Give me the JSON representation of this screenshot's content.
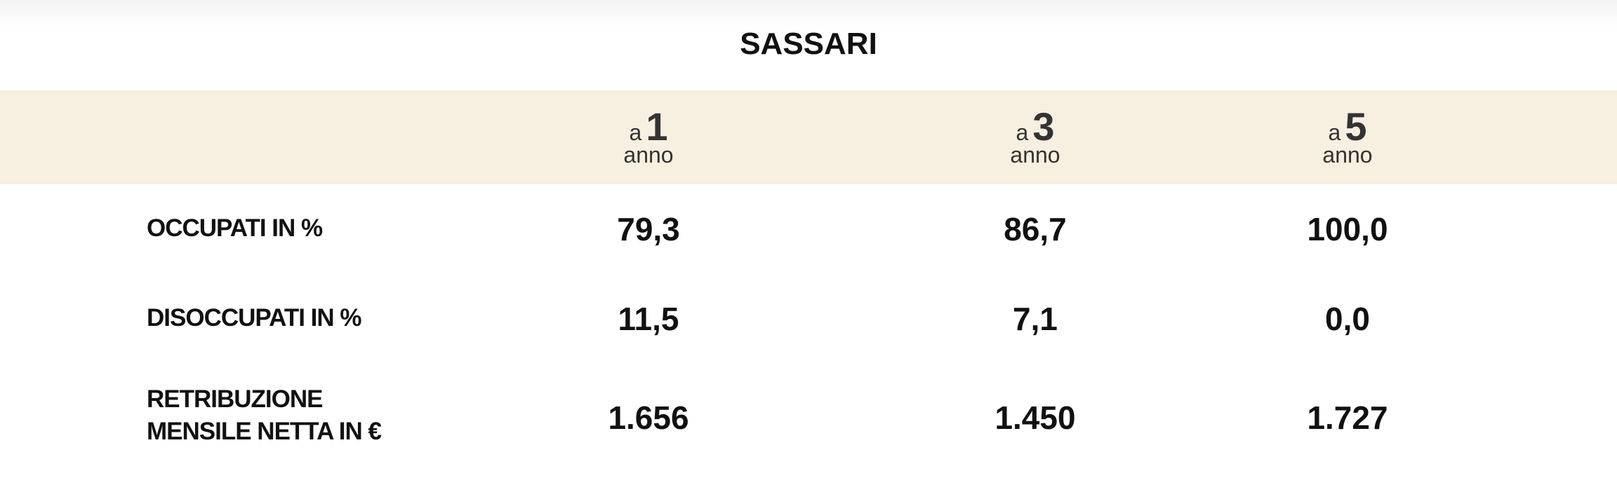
{
  "title": "SASSARI",
  "columns": [
    {
      "prefix": "a",
      "number": "1",
      "unit": "anno"
    },
    {
      "prefix": "a",
      "number": "3",
      "unit": "anno"
    },
    {
      "prefix": "a",
      "number": "5",
      "unit": "anno"
    }
  ],
  "rows": [
    {
      "label": "OCCUPATI IN %",
      "values": [
        "79,3",
        "86,7",
        "100,0"
      ]
    },
    {
      "label": "DISOCCUPATI IN %",
      "values": [
        "11,5",
        "7,1",
        "0,0"
      ]
    },
    {
      "label_line1": "RETRIBUZIONE",
      "label_line2": "MENSILE NETTA IN €",
      "values": [
        "1.656",
        "1.450",
        "1.727"
      ]
    }
  ],
  "colors": {
    "header_band": "#f7efdf",
    "text": "#111111"
  }
}
